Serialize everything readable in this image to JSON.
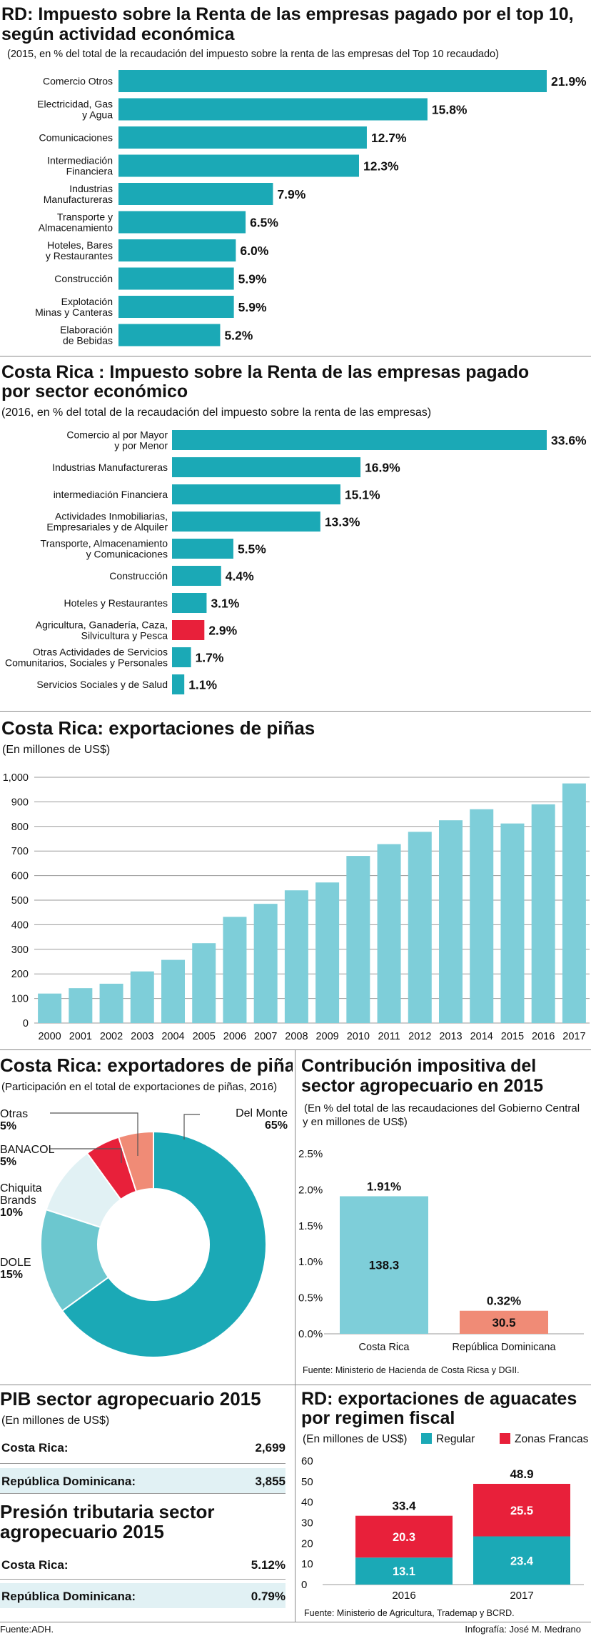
{
  "colors": {
    "teal": "#1BA9B6",
    "light_teal": "#7ECED9",
    "red": "#E8203A",
    "salmon": "#F08B76",
    "pale_blue": "#E1F1F4",
    "donut_light": "#6CC7CF"
  },
  "rd_renta": {
    "title": "RD: Impuesto sobre la Renta de las empresas pagado por el top 10, según actividad económica",
    "title_lines": [
      "RD: Impuesto sobre la Renta de las empresas pagado por el top 10,",
      "según actividad económica"
    ],
    "subtitle": "(2015, en % del total de la recaudación del  impuesto sobre la renta de las empresas del Top 10 recaudado)"
  },
  "cr_renta": {
    "title": "Costa Rica : Impuesto sobre la Renta de las empresas pagado por sector económico",
    "title_lines": [
      "Costa Rica : Impuesto sobre la Renta de las empresas pagado",
      " por sector económico"
    ],
    "subtitle": "(2016, en % del total de la recaudación del impuesto sobre la renta de las empresas)"
  },
  "pinas_export": {
    "title": "Costa Rica: exportaciones de piñas",
    "subtitle": "(En millones de US$)"
  },
  "exportadores": {
    "title": "Costa Rica: exportadores de piñas",
    "subtitle": "(Participación en el total de exportaciones de piñas, 2016)",
    "labels": [
      {
        "lines": [
          "Del Monte"
        ],
        "pct": "65%"
      },
      {
        "lines": [
          "DOLE"
        ],
        "pct": "15%"
      },
      {
        "lines": [
          "Chiquita",
          "Brands"
        ],
        "pct": "10%"
      },
      {
        "lines": [
          "BANACOL"
        ],
        "pct": "5%"
      },
      {
        "lines": [
          "Otras"
        ],
        "pct": "5%"
      }
    ]
  },
  "contribucion": {
    "title_lines": [
      "Contribución impositiva del",
      "sector agropecuario en 2015"
    ],
    "subtitle_lines": [
      "(En % del total de las recaudaciones del Gobierno Central",
      "y en millones de US$)"
    ],
    "source": "Fuente: Ministerio de Hacienda de Costa Ricsa y DGII."
  },
  "pib": {
    "title": "PIB sector agropecuario 2015",
    "subtitle": "(En millones de US$)",
    "rows": [
      {
        "label": "Costa Rica:",
        "value": "2,699"
      },
      {
        "label": "República Dominicana:",
        "value": "3,855"
      }
    ]
  },
  "presion": {
    "title_lines": [
      "Presión tributaria sector",
      "agropecuario 2015"
    ],
    "rows": [
      {
        "label": "Costa Rica:",
        "value": "5.12%"
      },
      {
        "label": "República Dominicana:",
        "value": "0.79%"
      }
    ]
  },
  "aguacates": {
    "title_lines": [
      "RD: exportaciones de aguacates",
      "por regimen fiscal"
    ],
    "subtitle": "(En millones de US$)",
    "source": "Fuente: Ministerio de Agricultura, Trademap y BCRD."
  },
  "footer": {
    "left": "Fuente:ADH.",
    "right": "Infografía: José M. Medrano"
  },
  "chart_data": [
    {
      "type": "bar",
      "orientation": "horizontal",
      "categories": [
        [
          "Comercio Otros"
        ],
        [
          "Electricidad, Gas",
          "y Agua"
        ],
        [
          "Comunicaciones"
        ],
        [
          "Intermediación",
          "Financiera"
        ],
        [
          "Industrias",
          "Manufactureras"
        ],
        [
          "Transporte y",
          "Almacenamiento"
        ],
        [
          "Hoteles, Bares",
          "y Restaurantes"
        ],
        [
          "Construcción"
        ],
        [
          "Explotación",
          "Minas y Canteras"
        ],
        [
          "Elaboración",
          "de Bebidas"
        ]
      ],
      "values": [
        21.9,
        15.8,
        12.7,
        12.3,
        7.9,
        6.5,
        6.0,
        5.9,
        5.9,
        5.2
      ],
      "value_labels": [
        "21.9%",
        "15.8%",
        "12.7%",
        "12.3%",
        "7.9%",
        "6.5%",
        "6.0%",
        "5.9%",
        "5.9%",
        "5.2%"
      ]
    },
    {
      "type": "bar",
      "orientation": "horizontal",
      "categories": [
        [
          "Comercio al por Mayor",
          "y por Menor"
        ],
        [
          "Industrias Manufactureras"
        ],
        [
          "intermediación Financiera"
        ],
        [
          "Actividades Inmobiliarias,",
          "Empresariales y de Alquiler"
        ],
        [
          "Transporte, Almacenamiento",
          "y Comunicaciones"
        ],
        [
          "Construcción"
        ],
        [
          "Hoteles y Restaurantes"
        ],
        [
          "Agricultura, Ganadería, Caza,",
          "Silvicultura y Pesca"
        ],
        [
          "Otras Actividades de Servicios",
          "Comunitarios, Sociales y Personales"
        ],
        [
          "Servicios Sociales y de Salud"
        ]
      ],
      "values": [
        33.6,
        16.9,
        15.1,
        13.3,
        5.5,
        4.4,
        3.1,
        2.9,
        1.7,
        1.1
      ],
      "value_labels": [
        "33.6%",
        "16.9%",
        "15.1%",
        "13.3%",
        "5.5%",
        "4.4%",
        "3.1%",
        "2.9%",
        "1.7%",
        "1.1%"
      ],
      "highlight_index": 7
    },
    {
      "type": "bar",
      "categories": [
        "2000",
        "2001",
        "2002",
        "2003",
        "2004",
        "2005",
        "2006",
        "2007",
        "2008",
        "2009",
        "2010",
        "2011",
        "2012",
        "2013",
        "2014",
        "2015",
        "2016",
        "2017"
      ],
      "values": [
        120,
        142,
        160,
        210,
        257,
        325,
        432,
        485,
        540,
        572,
        680,
        728,
        778,
        825,
        870,
        812,
        890,
        975
      ],
      "ylim": [
        0,
        1000
      ],
      "yticks": [
        "0",
        "100",
        "200",
        "300",
        "400",
        "500",
        "600",
        "700",
        "800",
        "900",
        "1,000"
      ],
      "grid": true
    },
    {
      "type": "pie",
      "donut": true,
      "categories": [
        "Del Monte",
        "DOLE",
        "Chiquita Brands",
        "BANACOL",
        "Otras"
      ],
      "values": [
        65,
        15,
        10,
        5,
        5
      ]
    },
    {
      "type": "bar",
      "categories": [
        "Costa Rica",
        "República Dominicana"
      ],
      "values": [
        1.91,
        0.32
      ],
      "value_labels": [
        "1.91%",
        "0.32%"
      ],
      "inner_labels": [
        "138.3",
        "30.5"
      ],
      "ylim": [
        0,
        2.5
      ],
      "yticks": [
        "0.0%",
        "0.5%",
        "1.0%",
        "1.5%",
        "2.0%",
        "2.5%"
      ]
    },
    {
      "type": "bar",
      "stacked": true,
      "categories": [
        "2016",
        "2017"
      ],
      "series": [
        {
          "name": "Regular",
          "values": [
            13.1,
            23.4
          ]
        },
        {
          "name": "Zonas Francas",
          "values": [
            20.3,
            25.5
          ]
        }
      ],
      "totals": [
        "33.4",
        "48.9"
      ],
      "ylim": [
        0,
        60
      ],
      "yticks": [
        "0",
        "10",
        "20",
        "30",
        "40",
        "50",
        "60"
      ]
    }
  ]
}
